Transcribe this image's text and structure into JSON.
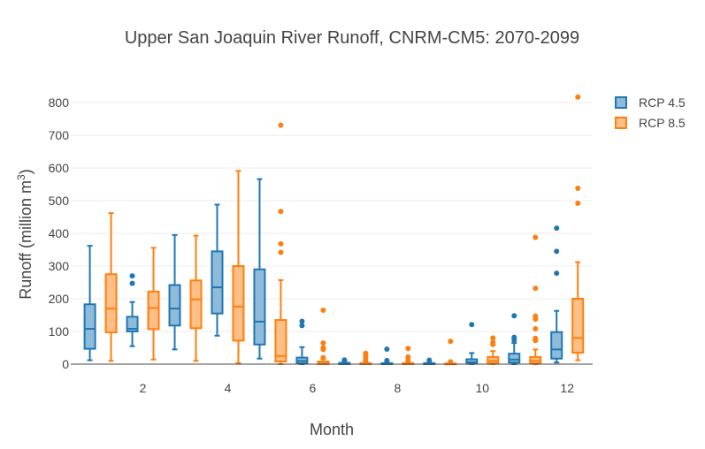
{
  "chart_data": {
    "type": "box",
    "title": "Upper San Joaquin River Runoff, CNRM-CM5: 2070-2099",
    "xlabel": "Month",
    "ylabel": "Runoff (million m",
    "ylabel_sup": "3",
    "ylabel_tail": ")",
    "ylim": [
      0,
      830
    ],
    "yticks": [
      0,
      100,
      200,
      300,
      400,
      500,
      600,
      700,
      800
    ],
    "xticks": [
      2,
      4,
      6,
      8,
      10,
      12
    ],
    "xlim": [
      0.3,
      12.6
    ],
    "grid": true,
    "legend_position": "top-right",
    "series": [
      {
        "name": "RCP 4.5",
        "color": "#1f77b4",
        "fill": "#8fbbda",
        "boxes": [
          {
            "month": 1,
            "whisker_low": 12,
            "q1": 47,
            "median": 108,
            "q3": 183,
            "whisker_high": 362,
            "outliers": []
          },
          {
            "month": 2,
            "whisker_low": 55,
            "q1": 100,
            "median": 108,
            "q3": 145,
            "whisker_high": 190,
            "outliers": [
              247,
              270
            ]
          },
          {
            "month": 3,
            "whisker_low": 45,
            "q1": 118,
            "median": 170,
            "q3": 242,
            "whisker_high": 395,
            "outliers": []
          },
          {
            "month": 4,
            "whisker_low": 87,
            "q1": 155,
            "median": 235,
            "q3": 345,
            "whisker_high": 488,
            "outliers": []
          },
          {
            "month": 5,
            "whisker_low": 17,
            "q1": 60,
            "median": 130,
            "q3": 290,
            "whisker_high": 566,
            "outliers": []
          },
          {
            "month": 6,
            "whisker_low": 0,
            "q1": 3,
            "median": 10,
            "q3": 20,
            "whisker_high": 52,
            "outliers": [
              118,
              131
            ]
          },
          {
            "month": 7,
            "whisker_low": 0,
            "q1": 0,
            "median": 2,
            "q3": 4,
            "whisker_high": 8,
            "outliers": [
              13
            ]
          },
          {
            "month": 8,
            "whisker_low": 0,
            "q1": 0,
            "median": 1,
            "q3": 3,
            "whisker_high": 6,
            "outliers": [
              11,
              46
            ]
          },
          {
            "month": 9,
            "whisker_low": 0,
            "q1": 0,
            "median": 1,
            "q3": 3,
            "whisker_high": 6,
            "outliers": [
              12
            ]
          },
          {
            "month": 10,
            "whisker_low": 0,
            "q1": 2,
            "median": 6,
            "q3": 15,
            "whisker_high": 34,
            "outliers": [
              121
            ]
          },
          {
            "month": 11,
            "whisker_low": 0,
            "q1": 5,
            "median": 14,
            "q3": 32,
            "whisker_high": 65,
            "outliers": [
              74,
              82,
              148
            ]
          },
          {
            "month": 12,
            "whisker_low": 5,
            "q1": 17,
            "median": 45,
            "q3": 98,
            "whisker_high": 163,
            "outliers": [
              278,
              345,
              416
            ]
          }
        ]
      },
      {
        "name": "RCP 8.5",
        "color": "#ff7f0e",
        "fill": "#ffbf86",
        "boxes": [
          {
            "month": 1,
            "whisker_low": 10,
            "q1": 97,
            "median": 170,
            "q3": 275,
            "whisker_high": 462,
            "outliers": []
          },
          {
            "month": 2,
            "whisker_low": 14,
            "q1": 107,
            "median": 172,
            "q3": 222,
            "whisker_high": 356,
            "outliers": []
          },
          {
            "month": 3,
            "whisker_low": 10,
            "q1": 110,
            "median": 198,
            "q3": 256,
            "whisker_high": 393,
            "outliers": []
          },
          {
            "month": 4,
            "whisker_low": 3,
            "q1": 72,
            "median": 176,
            "q3": 300,
            "whisker_high": 591,
            "outliers": []
          },
          {
            "month": 5,
            "whisker_low": 0,
            "q1": 8,
            "median": 25,
            "q3": 135,
            "whisker_high": 257,
            "outliers": [
              342,
              368,
              467,
              731
            ]
          },
          {
            "month": 6,
            "whisker_low": 0,
            "q1": 0,
            "median": 2,
            "q3": 8,
            "whisker_high": 16,
            "outliers": [
              20,
              45,
              50,
              65,
              165
            ]
          },
          {
            "month": 7,
            "whisker_low": 0,
            "q1": 0,
            "median": 1,
            "q3": 3,
            "whisker_high": 6,
            "outliers": [
              10,
              18,
              25,
              33
            ]
          },
          {
            "month": 8,
            "whisker_low": 0,
            "q1": 0,
            "median": 1,
            "q3": 3,
            "whisker_high": 6,
            "outliers": [
              12,
              22,
              48
            ]
          },
          {
            "month": 9,
            "whisker_low": 0,
            "q1": 0,
            "median": 1,
            "q3": 2,
            "whisker_high": 4,
            "outliers": [
              7,
              70
            ]
          },
          {
            "month": 10,
            "whisker_low": 0,
            "q1": 3,
            "median": 10,
            "q3": 22,
            "whisker_high": 40,
            "outliers": [
              60,
              67,
              80
            ]
          },
          {
            "month": 11,
            "whisker_low": 0,
            "q1": 3,
            "median": 10,
            "q3": 22,
            "whisker_high": 45,
            "outliers": [
              72,
              79,
              108,
              138,
              147,
              232,
              388
            ]
          },
          {
            "month": 12,
            "whisker_low": 12,
            "q1": 35,
            "median": 80,
            "q3": 200,
            "whisker_high": 312,
            "outliers": [
              492,
              538,
              817
            ]
          }
        ]
      }
    ]
  }
}
